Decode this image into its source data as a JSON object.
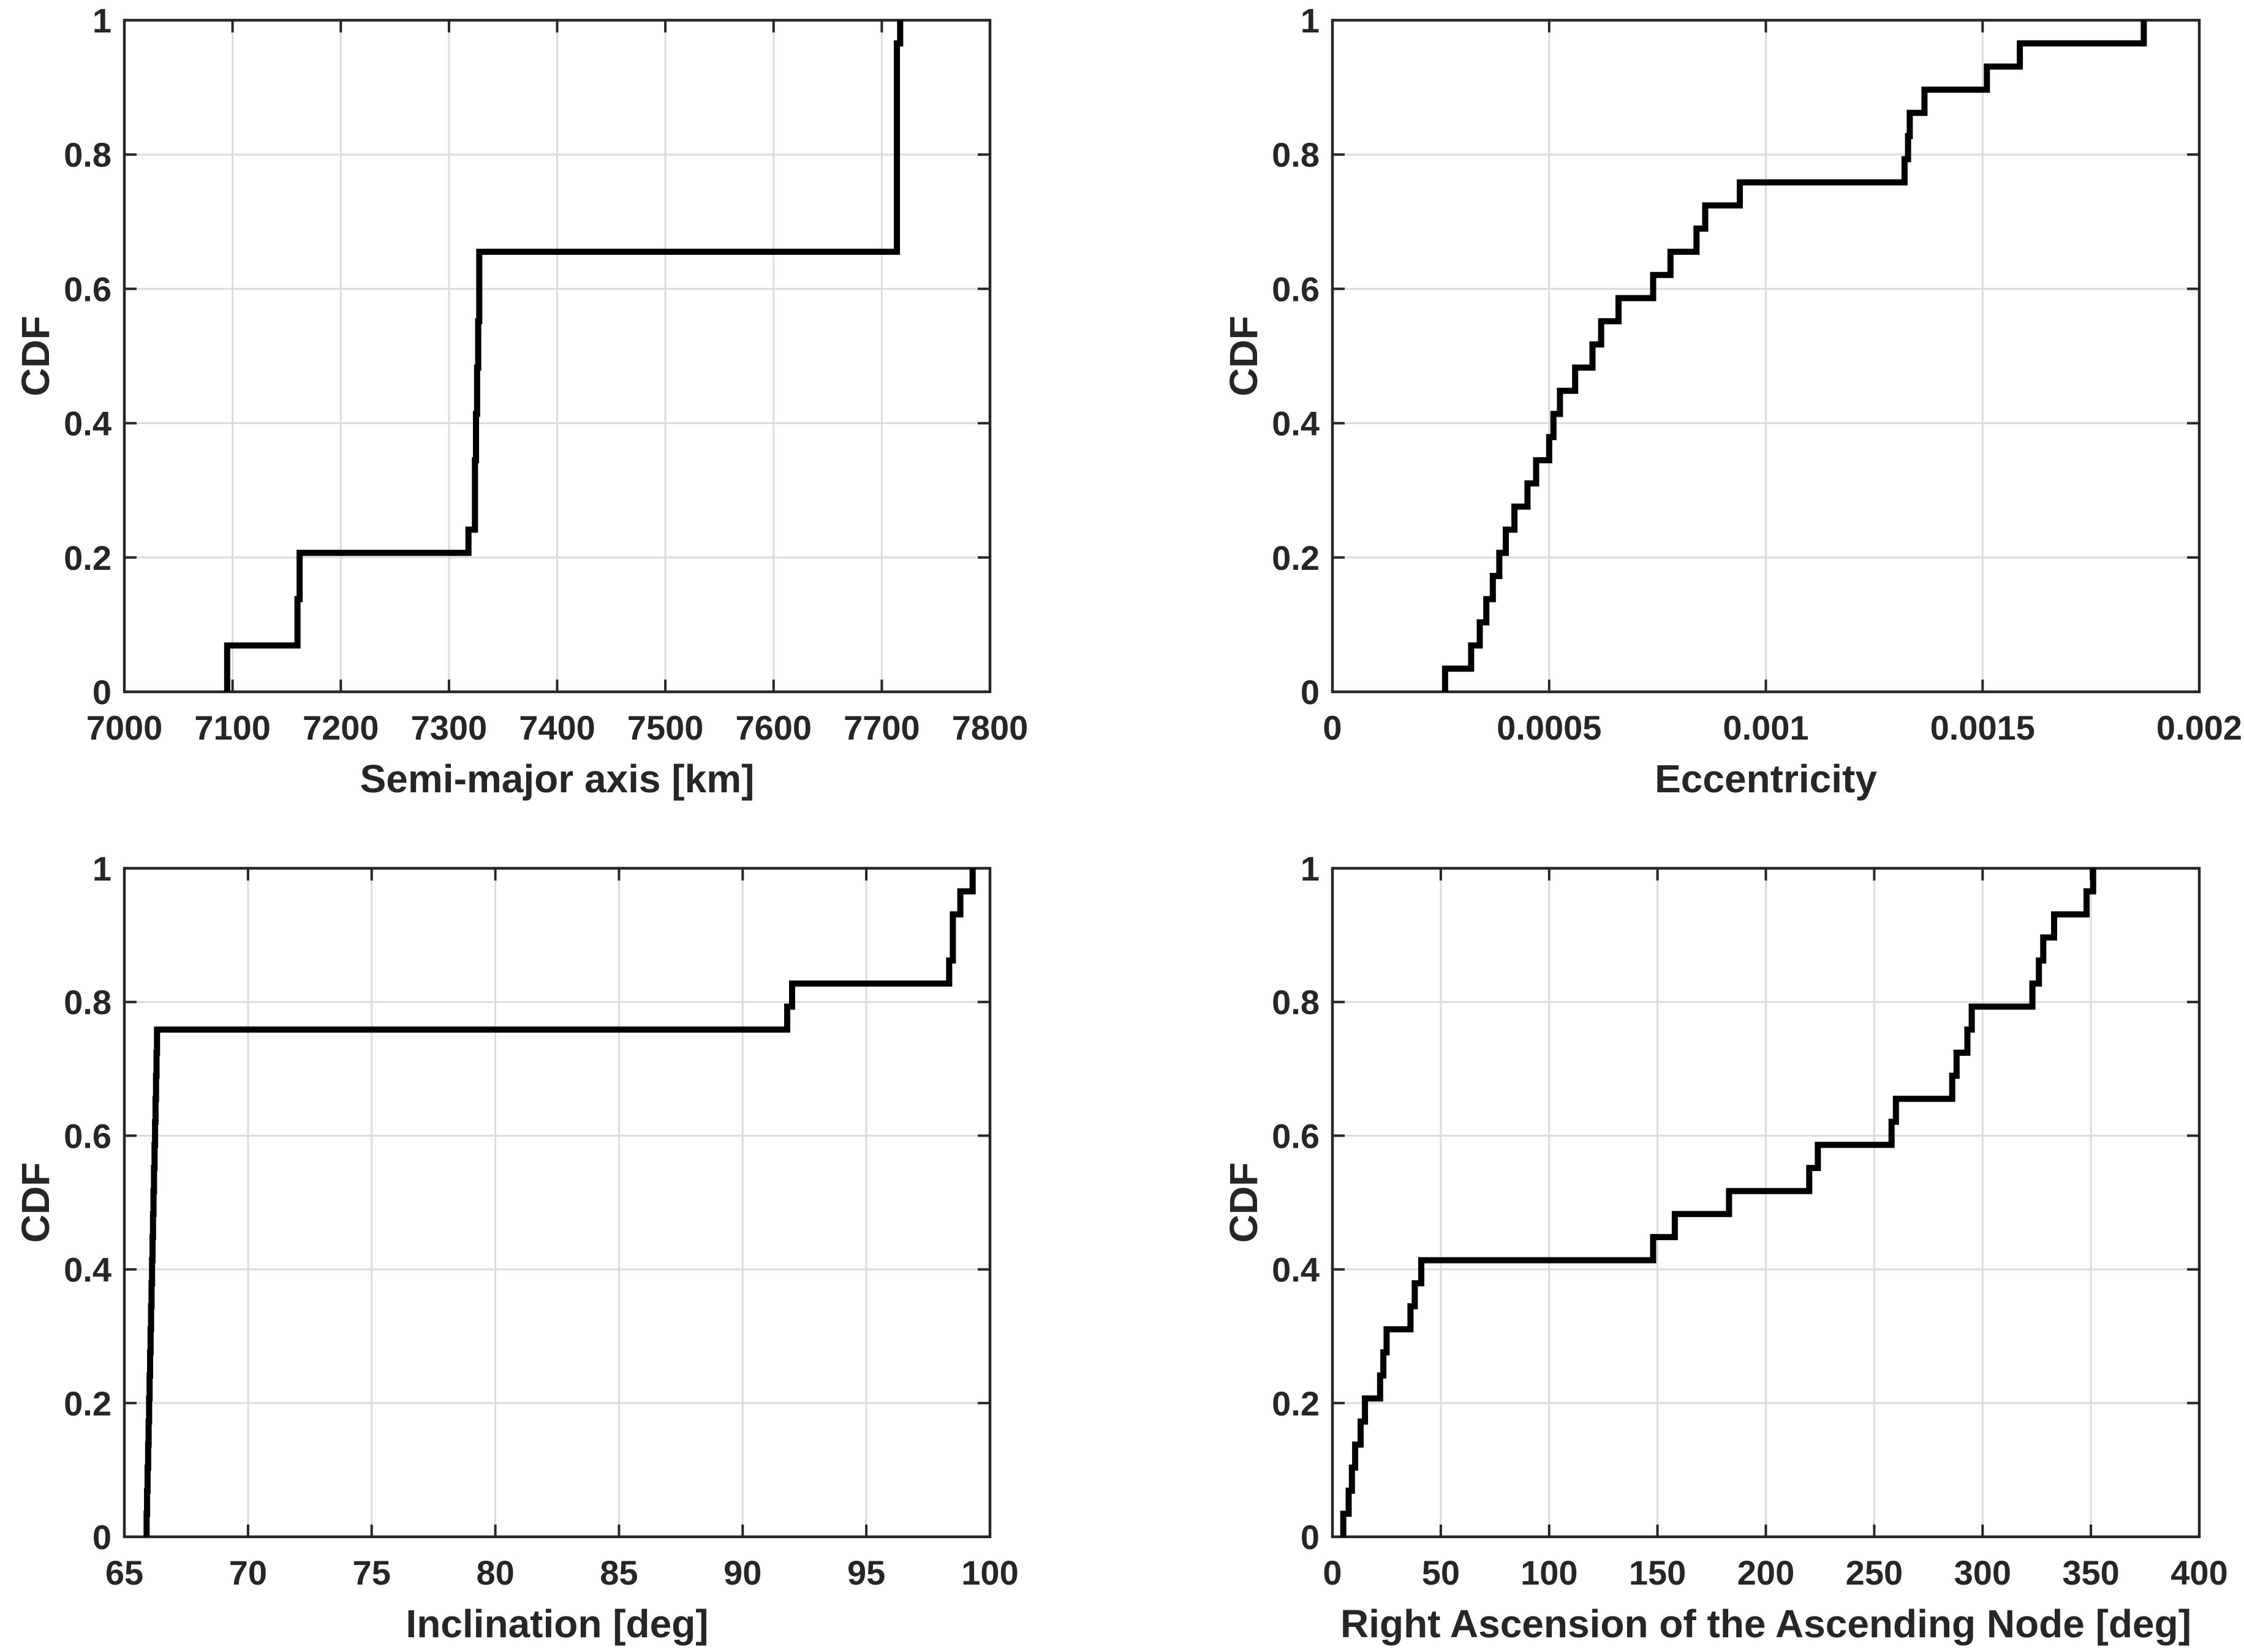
{
  "figure": {
    "background_color": "#ffffff",
    "line_color": "#000000",
    "grid_color": "#dcdcdc",
    "axis_color": "#262626",
    "n_samples": 29
  },
  "chart_data": [
    {
      "type": "line",
      "plot_style": "ecdf-stairs",
      "title": "",
      "xlabel": "Semi-major axis [km]",
      "ylabel": "CDF",
      "xlim": [
        7000,
        7800
      ],
      "ylim": [
        0,
        1
      ],
      "grid": true,
      "legend": null,
      "xticks": [
        7000,
        7100,
        7200,
        7300,
        7400,
        7500,
        7600,
        7700,
        7800
      ],
      "xtick_labels": [
        "7000",
        "7100",
        "7200",
        "7300",
        "7400",
        "7500",
        "7600",
        "7700",
        "7800"
      ],
      "yticks": [
        0,
        0.2,
        0.4,
        0.6,
        0.8,
        1
      ],
      "ytick_labels": [
        "0",
        "0.2",
        "0.4",
        "0.6",
        "0.8",
        "1"
      ],
      "x_sorted": [
        7095,
        7095,
        7160,
        7160,
        7162,
        7162,
        7318,
        7324,
        7324,
        7324,
        7325,
        7325,
        7326,
        7326,
        7327,
        7327,
        7328,
        7328,
        7328,
        7714,
        7714,
        7714,
        7714,
        7714,
        7714,
        7714,
        7714,
        7714,
        7717
      ],
      "key_levels": {
        "first_plateau": 0.069,
        "second_plateau": 0.207,
        "third_plateau": 0.655,
        "final": 1.0
      }
    },
    {
      "type": "line",
      "plot_style": "ecdf-stairs",
      "title": "",
      "xlabel": "Eccentricity",
      "ylabel": "CDF",
      "xlim": [
        0,
        0.002
      ],
      "ylim": [
        0,
        1
      ],
      "grid": true,
      "legend": null,
      "xticks": [
        0,
        0.0005,
        0.001,
        0.0015,
        0.002
      ],
      "xtick_labels": [
        "0",
        "0.0005",
        "0.001",
        "0.0015",
        "0.002"
      ],
      "yticks": [
        0,
        0.2,
        0.4,
        0.6,
        0.8,
        1
      ],
      "ytick_labels": [
        "0",
        "0.2",
        "0.4",
        "0.6",
        "0.8",
        "1"
      ],
      "x_sorted": [
        0.00026,
        0.00032,
        0.00034,
        0.000355,
        0.00037,
        0.000385,
        0.0004,
        0.00042,
        0.00045,
        0.00047,
        0.0005,
        0.00051,
        0.000525,
        0.00056,
        0.0006,
        0.00062,
        0.00066,
        0.00074,
        0.00078,
        0.00084,
        0.00086,
        0.00094,
        0.00132,
        0.001328,
        0.001332,
        0.001366,
        0.00151,
        0.001586,
        0.001872
      ],
      "key_levels": {
        "long_plateau": 0.759,
        "upper_plateau": 0.966,
        "final": 1.0
      }
    },
    {
      "type": "line",
      "plot_style": "ecdf-stairs",
      "title": "",
      "xlabel": "Inclination [deg]",
      "ylabel": "CDF",
      "xlim": [
        65,
        100
      ],
      "ylim": [
        0,
        1
      ],
      "grid": true,
      "legend": null,
      "xticks": [
        65,
        70,
        75,
        80,
        85,
        90,
        95,
        100
      ],
      "xtick_labels": [
        "65",
        "70",
        "75",
        "80",
        "85",
        "90",
        "95",
        "100"
      ],
      "yticks": [
        0,
        0.2,
        0.4,
        0.6,
        0.8,
        1
      ],
      "ytick_labels": [
        "0",
        "0.2",
        "0.4",
        "0.6",
        "0.8",
        "1"
      ],
      "x_sorted": [
        65.9,
        65.92,
        65.94,
        65.96,
        65.98,
        66.0,
        66.02,
        66.04,
        66.06,
        66.08,
        66.1,
        66.12,
        66.14,
        66.16,
        66.18,
        66.2,
        66.22,
        66.24,
        66.26,
        66.28,
        66.3,
        66.32,
        91.8,
        92.0,
        98.35,
        98.5,
        98.5,
        98.8,
        99.3
      ],
      "key_levels": {
        "main_plateau": 0.759,
        "second_plateau": 0.828,
        "final": 1.0
      }
    },
    {
      "type": "line",
      "plot_style": "ecdf-stairs",
      "title": "",
      "xlabel": "Right Ascension of the Ascending Node [deg]",
      "ylabel": "CDF",
      "xlim": [
        0,
        400
      ],
      "ylim": [
        0,
        1
      ],
      "grid": true,
      "legend": null,
      "xticks": [
        0,
        50,
        100,
        150,
        200,
        250,
        300,
        350,
        400
      ],
      "xtick_labels": [
        "0",
        "50",
        "100",
        "150",
        "200",
        "250",
        "300",
        "350",
        "400"
      ],
      "yticks": [
        0,
        0.2,
        0.4,
        0.6,
        0.8,
        1
      ],
      "ytick_labels": [
        "0",
        "0.2",
        "0.4",
        "0.6",
        "0.8",
        "1"
      ],
      "x_sorted": [
        5,
        7.5,
        9,
        10.5,
        13,
        15,
        22,
        23.5,
        25,
        36,
        38,
        41,
        148,
        158,
        183,
        220,
        224,
        258,
        260,
        286,
        288,
        293,
        295,
        323,
        326,
        328,
        333,
        348,
        351
      ],
      "key_levels": {
        "long_plateau": 0.414,
        "final": 1.0
      }
    }
  ]
}
